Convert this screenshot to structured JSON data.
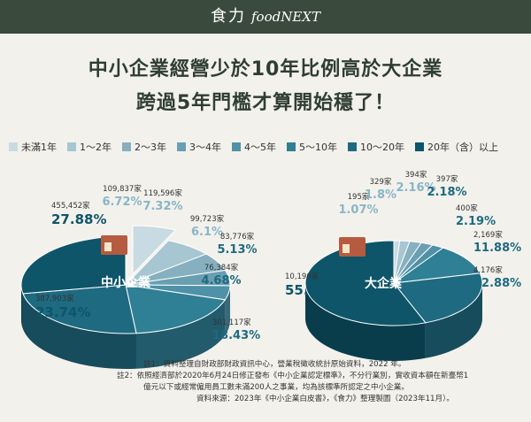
{
  "header": {
    "brand_cn": "食力",
    "brand_en": "foodNEXT"
  },
  "title_line1": "中小企業經營少於10年比例高於大企業",
  "title_line2": "跨過5年門檻才算開始穩了！",
  "legend": [
    "未滿1年",
    "1～2年",
    "2～3年",
    "3～4年",
    "4～5年",
    "5～10年",
    "10～20年",
    "20年（含）以上"
  ],
  "colors": [
    "#c9dbe2",
    "#a6c6d1",
    "#86b0bf",
    "#6a9fb2",
    "#4f91a6",
    "#2f7f95",
    "#1e6a80",
    "#0e5569"
  ],
  "chart_data": [
    {
      "type": "pie",
      "name": "中小企業",
      "categories": [
        "未滿1年",
        "1～2年",
        "2～3年",
        "3～4年",
        "4～5年",
        "5～10年",
        "10～20年",
        "20年（含）以上"
      ],
      "values": [
        109837,
        119596,
        99723,
        83776,
        76384,
        301117,
        387903,
        455452
      ],
      "value_labels": [
        "109,837家",
        "119,596家",
        "99,723家",
        "83,776家",
        "76,384家",
        "301,117家",
        "387,903家",
        "455,452家"
      ],
      "percents": [
        "6.72%",
        "7.32%",
        "6.1%",
        "5.13%",
        "4.68%",
        "18.43%",
        "23.74%",
        "27.88%"
      ]
    },
    {
      "type": "pie",
      "name": "大企業",
      "categories": [
        "未滿1年",
        "1～2年",
        "2～3年",
        "3～4年",
        "4～5年",
        "5～10年",
        "10～20年",
        "20年（含）以上"
      ],
      "values": [
        195,
        329,
        394,
        397,
        400,
        2169,
        4176,
        10190
      ],
      "value_labels": [
        "195家",
        "329家",
        "394家",
        "397家",
        "400家",
        "2,169家",
        "4,176家",
        "10,190家"
      ],
      "percents": [
        "1.07%",
        "1.8%",
        "2.16%",
        "2.18%",
        "2.19%",
        "11.88%",
        "22.88%",
        "55.84%"
      ]
    }
  ],
  "notes": {
    "n1": "註1：資料整理自財政部財政資訊中心，營業稅徵收統計原始資料，2022 年。",
    "n2": "註2：依照經濟部於2020年6月24日修正發布《中小企業認定標準》，不分行業別，實收資本額在新臺幣1億元以下或經常僱用員工數未滿200人之事業，均為該標準所認定之中小企業。",
    "n3": "資料來源：2023年《中小企業白皮書》，《食力》整理製圖（2023年11月）。"
  }
}
